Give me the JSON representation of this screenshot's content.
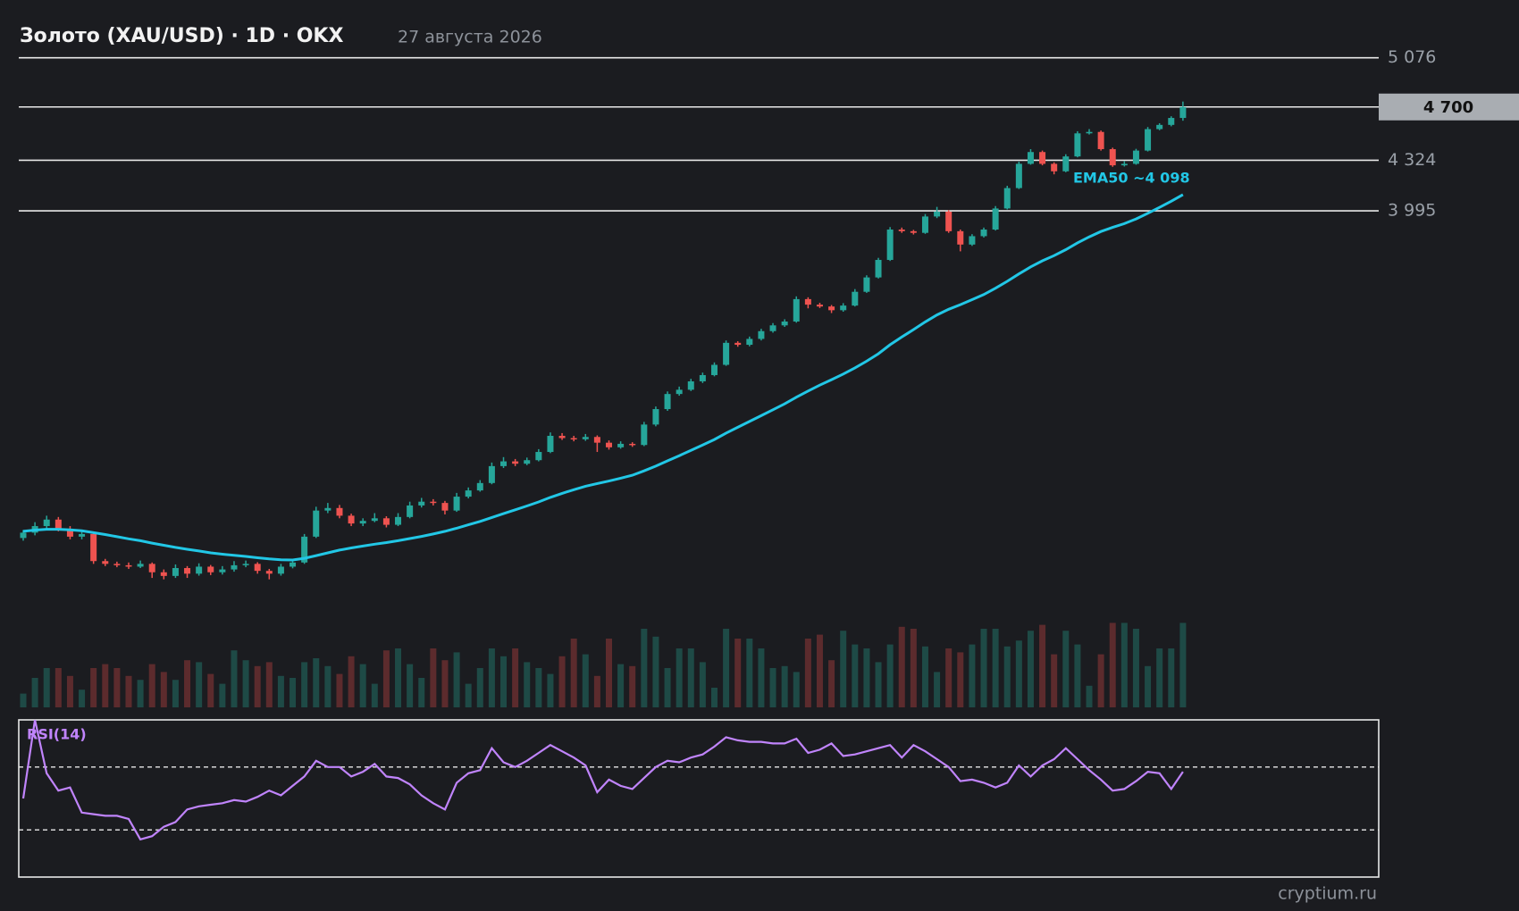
{
  "chart_data": {
    "type": "candlestick",
    "title": "Золото (XAU/USD) · 1D · OKX",
    "subtitle": "27 августа 2026",
    "watermark": "cryptium.ru",
    "log_scale": true,
    "ylim": [
      2173,
      5232
    ],
    "yticks": [
      {
        "value": 5076,
        "label": "5 076"
      },
      {
        "value": 4324,
        "label": "4 324"
      },
      {
        "value": 3995,
        "label": "3 995"
      }
    ],
    "last_price": {
      "value": 4700,
      "label": "4 700"
    },
    "up_color": "#26a69a",
    "down_color": "#ef5350",
    "volume_up_color": "#1e4a46",
    "volume_down_color": "#5c2b2d",
    "ohlc": [
      [
        2395,
        2425,
        2385,
        2415
      ],
      [
        2415,
        2455,
        2405,
        2440
      ],
      [
        2440,
        2480,
        2430,
        2465
      ],
      [
        2465,
        2475,
        2420,
        2430
      ],
      [
        2430,
        2440,
        2390,
        2400
      ],
      [
        2400,
        2420,
        2390,
        2410
      ],
      [
        2410,
        2415,
        2300,
        2310
      ],
      [
        2310,
        2318,
        2292,
        2300
      ],
      [
        2300,
        2308,
        2288,
        2295
      ],
      [
        2295,
        2305,
        2282,
        2290
      ],
      [
        2290,
        2312,
        2285,
        2300
      ],
      [
        2300,
        2305,
        2250,
        2270
      ],
      [
        2270,
        2280,
        2245,
        2257
      ],
      [
        2257,
        2298,
        2250,
        2285
      ],
      [
        2285,
        2292,
        2250,
        2265
      ],
      [
        2265,
        2302,
        2258,
        2290
      ],
      [
        2290,
        2296,
        2260,
        2270
      ],
      [
        2270,
        2292,
        2262,
        2280
      ],
      [
        2280,
        2310,
        2272,
        2295
      ],
      [
        2295,
        2312,
        2288,
        2300
      ],
      [
        2300,
        2306,
        2265,
        2275
      ],
      [
        2275,
        2282,
        2245,
        2265
      ],
      [
        2265,
        2300,
        2258,
        2290
      ],
      [
        2290,
        2318,
        2284,
        2305
      ],
      [
        2305,
        2410,
        2300,
        2400
      ],
      [
        2400,
        2515,
        2395,
        2500
      ],
      [
        2500,
        2530,
        2490,
        2510
      ],
      [
        2510,
        2522,
        2470,
        2480
      ],
      [
        2480,
        2488,
        2440,
        2450
      ],
      [
        2450,
        2470,
        2440,
        2460
      ],
      [
        2460,
        2490,
        2455,
        2470
      ],
      [
        2470,
        2478,
        2435,
        2445
      ],
      [
        2445,
        2490,
        2440,
        2475
      ],
      [
        2475,
        2535,
        2470,
        2520
      ],
      [
        2520,
        2550,
        2512,
        2535
      ],
      [
        2535,
        2545,
        2520,
        2530
      ],
      [
        2530,
        2538,
        2485,
        2500
      ],
      [
        2500,
        2570,
        2495,
        2555
      ],
      [
        2555,
        2592,
        2548,
        2580
      ],
      [
        2580,
        2622,
        2575,
        2610
      ],
      [
        2610,
        2695,
        2605,
        2680
      ],
      [
        2680,
        2718,
        2672,
        2700
      ],
      [
        2700,
        2710,
        2680,
        2690
      ],
      [
        2690,
        2716,
        2684,
        2705
      ],
      [
        2705,
        2752,
        2700,
        2740
      ],
      [
        2740,
        2825,
        2735,
        2810
      ],
      [
        2810,
        2822,
        2792,
        2800
      ],
      [
        2800,
        2810,
        2786,
        2795
      ],
      [
        2795,
        2818,
        2788,
        2805
      ],
      [
        2805,
        2812,
        2740,
        2780
      ],
      [
        2780,
        2790,
        2750,
        2760
      ],
      [
        2760,
        2786,
        2754,
        2775
      ],
      [
        2775,
        2782,
        2762,
        2770
      ],
      [
        2770,
        2872,
        2765,
        2860
      ],
      [
        2860,
        2942,
        2852,
        2930
      ],
      [
        2930,
        3012,
        2922,
        3000
      ],
      [
        3000,
        3035,
        2992,
        3020
      ],
      [
        3020,
        3072,
        3014,
        3060
      ],
      [
        3060,
        3102,
        3052,
        3090
      ],
      [
        3090,
        3152,
        3084,
        3140
      ],
      [
        3140,
        3262,
        3135,
        3250
      ],
      [
        3250,
        3258,
        3230,
        3240
      ],
      [
        3240,
        3282,
        3232,
        3270
      ],
      [
        3270,
        3322,
        3262,
        3310
      ],
      [
        3310,
        3352,
        3302,
        3340
      ],
      [
        3340,
        3372,
        3332,
        3360
      ],
      [
        3360,
        3495,
        3354,
        3480
      ],
      [
        3480,
        3490,
        3430,
        3450
      ],
      [
        3450,
        3460,
        3432,
        3440
      ],
      [
        3440,
        3448,
        3405,
        3420
      ],
      [
        3420,
        3458,
        3412,
        3445
      ],
      [
        3445,
        3535,
        3440,
        3520
      ],
      [
        3520,
        3612,
        3514,
        3600
      ],
      [
        3600,
        3712,
        3594,
        3700
      ],
      [
        3700,
        3895,
        3694,
        3880
      ],
      [
        3880,
        3892,
        3860,
        3870
      ],
      [
        3870,
        3878,
        3850,
        3860
      ],
      [
        3860,
        3975,
        3854,
        3960
      ],
      [
        3960,
        4020,
        3950,
        3990
      ],
      [
        3990,
        4000,
        3860,
        3870
      ],
      [
        3870,
        3880,
        3750,
        3790
      ],
      [
        3790,
        3852,
        3782,
        3840
      ],
      [
        3840,
        3892,
        3832,
        3880
      ],
      [
        3880,
        4025,
        3874,
        4010
      ],
      [
        4010,
        4155,
        4004,
        4140
      ],
      [
        4140,
        4315,
        4134,
        4300
      ],
      [
        4300,
        4400,
        4294,
        4380
      ],
      [
        4380,
        4390,
        4290,
        4300
      ],
      [
        4300,
        4310,
        4230,
        4250
      ],
      [
        4250,
        4365,
        4244,
        4350
      ],
      [
        4350,
        4525,
        4344,
        4510
      ],
      [
        4510,
        4540,
        4502,
        4520
      ],
      [
        4520,
        4530,
        4390,
        4400
      ],
      [
        4400,
        4410,
        4280,
        4290
      ],
      [
        4290,
        4318,
        4282,
        4300
      ],
      [
        4300,
        4402,
        4294,
        4390
      ],
      [
        4390,
        4555,
        4384,
        4540
      ],
      [
        4540,
        4582,
        4532,
        4570
      ],
      [
        4570,
        4632,
        4560,
        4620
      ],
      [
        4620,
        4740,
        4600,
        4700
      ]
    ],
    "volume_ylim": [
      0,
      100
    ],
    "volume": [
      14,
      30,
      40,
      40,
      32,
      18,
      40,
      44,
      40,
      32,
      28,
      44,
      36,
      28,
      48,
      46,
      34,
      24,
      58,
      48,
      42,
      46,
      32,
      30,
      46,
      50,
      42,
      34,
      52,
      44,
      24,
      58,
      60,
      44,
      30,
      60,
      48,
      56,
      24,
      40,
      60,
      52,
      60,
      46,
      40,
      34,
      52,
      70,
      54,
      32,
      70,
      44,
      42,
      80,
      72,
      40,
      60,
      60,
      46,
      20,
      80,
      70,
      70,
      60,
      40,
      42,
      36,
      70,
      74,
      48,
      78,
      64,
      60,
      46,
      64,
      82,
      80,
      62,
      36,
      60,
      56,
      64,
      80,
      80,
      62,
      68,
      78,
      84,
      54,
      78,
      64,
      22,
      54,
      86,
      86,
      80,
      42,
      60,
      60,
      86
    ],
    "ema": {
      "name": "EMA50",
      "color": "#22c7e6",
      "annotation": "EMA50 ~4 098",
      "values": [
        2420,
        2425,
        2428,
        2428,
        2426,
        2422,
        2415,
        2408,
        2400,
        2392,
        2385,
        2376,
        2368,
        2360,
        2353,
        2347,
        2340,
        2335,
        2331,
        2327,
        2322,
        2318,
        2315,
        2314,
        2320,
        2330,
        2340,
        2350,
        2358,
        2365,
        2372,
        2378,
        2385,
        2393,
        2401,
        2410,
        2420,
        2432,
        2445,
        2458,
        2473,
        2488,
        2503,
        2518,
        2534,
        2552,
        2568,
        2583,
        2597,
        2608,
        2618,
        2630,
        2642,
        2660,
        2680,
        2702,
        2724,
        2747,
        2770,
        2794,
        2822,
        2848,
        2874,
        2900,
        2927,
        2954,
        2985,
        3014,
        3042,
        3068,
        3095,
        3125,
        3158,
        3195,
        3240,
        3280,
        3318,
        3358,
        3395,
        3425,
        3450,
        3477,
        3505,
        3540,
        3578,
        3620,
        3660,
        3695,
        3725,
        3760,
        3800,
        3836,
        3868,
        3893,
        3916,
        3945,
        3980,
        4017,
        4056,
        4098
      ]
    },
    "rsi": {
      "name": "RSI(14)",
      "color": "#c084fc",
      "ylim": [
        0,
        100
      ],
      "levels": [
        70,
        30
      ],
      "values": [
        50,
        100,
        66,
        55,
        57,
        41,
        40,
        39,
        39,
        37,
        24,
        26,
        32,
        35,
        43,
        45,
        46,
        47,
        49,
        48,
        51,
        55,
        52,
        58,
        64,
        74,
        70,
        70,
        64,
        67,
        72,
        64,
        63,
        59,
        52,
        47,
        43,
        60,
        66,
        68,
        82,
        73,
        70,
        74,
        79,
        84,
        80,
        76,
        71,
        54,
        62,
        58,
        56,
        63,
        70,
        74,
        73,
        76,
        78,
        83,
        89,
        87,
        86,
        86,
        85,
        85,
        88,
        79,
        81,
        85,
        77,
        78,
        80,
        82,
        84,
        76,
        84,
        80,
        75,
        70,
        61,
        62,
        60,
        57,
        60,
        71,
        64,
        71,
        75,
        82,
        75,
        68,
        62,
        55,
        56,
        61,
        67,
        66,
        56,
        67
      ]
    }
  }
}
